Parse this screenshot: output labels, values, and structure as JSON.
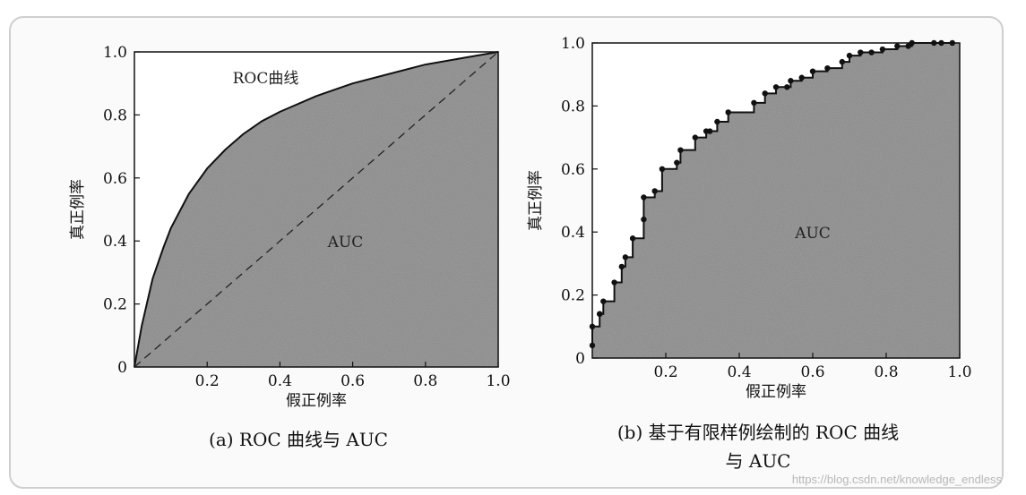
{
  "chart_data": [
    {
      "id": "a",
      "type": "area",
      "xlabel": "假正例率",
      "ylabel": "真正例率",
      "xlim": [
        0,
        1
      ],
      "ylim": [
        0,
        1
      ],
      "x_ticks": [
        "0.2",
        "0.4",
        "0.6",
        "0.8",
        "1.0"
      ],
      "y_ticks": [
        "0",
        "0.2",
        "0.4",
        "0.6",
        "0.8",
        "1.0"
      ],
      "series": [
        {
          "name": "ROC曲线",
          "style": "solid",
          "x": [
            0,
            0.02,
            0.05,
            0.08,
            0.1,
            0.15,
            0.2,
            0.25,
            0.3,
            0.35,
            0.4,
            0.5,
            0.6,
            0.7,
            0.8,
            0.9,
            1.0
          ],
          "y": [
            0,
            0.13,
            0.28,
            0.38,
            0.44,
            0.55,
            0.63,
            0.69,
            0.74,
            0.78,
            0.81,
            0.86,
            0.9,
            0.93,
            0.96,
            0.98,
            1.0
          ]
        },
        {
          "name": "",
          "style": "dashed",
          "x": [
            0,
            1
          ],
          "y": [
            0,
            1
          ]
        }
      ],
      "annotations": [
        "AUC"
      ],
      "caption": "(a) ROC 曲线与 AUC"
    },
    {
      "id": "b",
      "type": "line",
      "xlabel": "假正例率",
      "ylabel": "真正例率",
      "xlim": [
        0,
        1
      ],
      "ylim": [
        0,
        1
      ],
      "x_ticks": [
        "0.2",
        "0.4",
        "0.6",
        "0.8",
        "1.0"
      ],
      "y_ticks": [
        "0",
        "0.2",
        "0.4",
        "0.6",
        "0.8",
        "1.0"
      ],
      "series": [
        {
          "name": "",
          "style": "step",
          "x": [
            0,
            0,
            0.02,
            0.02,
            0.03,
            0.06,
            0.08,
            0.09,
            0.11,
            0.14,
            0.14,
            0.17,
            0.19,
            0.23,
            0.24,
            0.28,
            0.31,
            0.32,
            0.34,
            0.37,
            0.44,
            0.47,
            0.5,
            0.53,
            0.54,
            0.57,
            0.6,
            0.64,
            0.68,
            0.7,
            0.73,
            0.76,
            0.79,
            0.83,
            0.86,
            0.87,
            0.93,
            0.95,
            0.98
          ],
          "y": [
            0.04,
            0.1,
            0.14,
            0.14,
            0.18,
            0.24,
            0.29,
            0.32,
            0.38,
            0.44,
            0.51,
            0.53,
            0.6,
            0.62,
            0.66,
            0.7,
            0.72,
            0.72,
            0.75,
            0.78,
            0.81,
            0.84,
            0.86,
            0.86,
            0.88,
            0.89,
            0.91,
            0.92,
            0.94,
            0.96,
            0.97,
            0.97,
            0.98,
            0.99,
            0.99,
            1.0,
            1.0,
            1.0,
            1.0
          ]
        }
      ],
      "annotations": [
        "AUC"
      ],
      "caption_lines": [
        "(b) 基于有限样例绘制的 ROC 曲线",
        "与 AUC"
      ]
    }
  ],
  "watermark": "https://blog.csdn.net/knowledge_endless"
}
